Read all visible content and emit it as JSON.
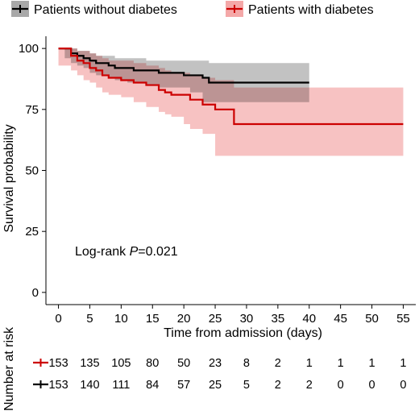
{
  "legend": {
    "items": [
      {
        "label": "Patients without diabetes",
        "color": "#000000",
        "fill": "#a8a8a8"
      },
      {
        "label": "Patients with diabetes",
        "color": "#cc0000",
        "fill": "#f4a8a8"
      }
    ]
  },
  "annotation": {
    "prefix": "Log-rank ",
    "italic": "P",
    "suffix": "=0.021"
  },
  "risk_table": {
    "title": "Number at risk",
    "rows": [
      {
        "group": "Patients with diabetes",
        "color": "#cc0000",
        "values": [
          153,
          135,
          105,
          80,
          50,
          23,
          8,
          2,
          1,
          1,
          1,
          1
        ]
      },
      {
        "group": "Patients without diabetes",
        "color": "#000000",
        "values": [
          153,
          140,
          111,
          84,
          57,
          25,
          5,
          2,
          2,
          0,
          0,
          0
        ]
      }
    ]
  },
  "chart_data": {
    "type": "line",
    "step": true,
    "xlabel": "Time from admission (days)",
    "ylabel": "Survival probability",
    "xlim": [
      -2,
      57
    ],
    "ylim": [
      -5,
      105
    ],
    "xticks": [
      0,
      5,
      10,
      15,
      20,
      25,
      30,
      35,
      40,
      45,
      50,
      55
    ],
    "yticks": [
      0,
      25,
      50,
      75,
      100
    ],
    "legend_position": "top",
    "grid": false,
    "series": [
      {
        "name": "Patients without diabetes",
        "color": "#000000",
        "band_color": "#a8a8a8",
        "x": [
          0,
          1,
          2,
          3,
          4,
          5,
          6,
          8,
          9,
          11,
          12,
          14,
          16,
          20,
          21,
          23,
          24,
          40
        ],
        "y": [
          100,
          100,
          98,
          97,
          96,
          95,
          94,
          93,
          92,
          92,
          91,
          91,
          90,
          89,
          89,
          88,
          86,
          86
        ],
        "lower": [
          100,
          100,
          96,
          94,
          93,
          92,
          90,
          89,
          88,
          87,
          86,
          86,
          85,
          84,
          84,
          82,
          78,
          78
        ],
        "upper": [
          100,
          100,
          100,
          99,
          99,
          98,
          97,
          97,
          96,
          96,
          96,
          95,
          95,
          95,
          95,
          95,
          94,
          94
        ]
      },
      {
        "name": "Patients with diabetes",
        "color": "#cc0000",
        "band_color": "#f4a8a8",
        "x": [
          0,
          2,
          3,
          4,
          5,
          6,
          7,
          8,
          10,
          12,
          14,
          16,
          17,
          18,
          20,
          21,
          23,
          25,
          28,
          55
        ],
        "y": [
          100,
          97,
          95,
          94,
          92,
          91,
          89,
          88,
          87,
          86,
          85,
          83,
          82,
          81,
          81,
          79,
          77,
          75,
          69,
          69
        ],
        "lower": [
          100,
          93,
          91,
          89,
          87,
          86,
          84,
          82,
          81,
          80,
          78,
          76,
          74,
          73,
          72,
          69,
          67,
          65,
          56,
          56
        ],
        "upper": [
          100,
          100,
          99,
          99,
          98,
          97,
          96,
          95,
          95,
          94,
          93,
          92,
          91,
          90,
          90,
          89,
          88,
          87,
          84,
          84
        ]
      }
    ]
  }
}
